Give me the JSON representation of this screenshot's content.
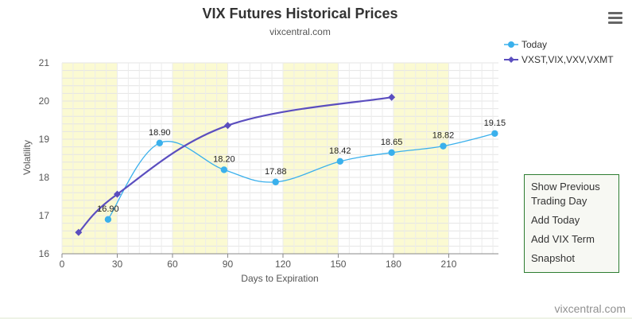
{
  "menu": {
    "icon": "hamburger-menu-icon"
  },
  "controls": {
    "show_previous": "Show Previous Trading Day",
    "add_today": "Add Today",
    "add_vix_term": "Add VIX Term",
    "snapshot": "Snapshot"
  },
  "credit": "vixcentral.com",
  "chart_data": {
    "type": "line",
    "title": "VIX Futures Historical Prices",
    "subtitle": "vixcentral.com",
    "xlabel": "Days to Expiration",
    "ylabel": "Volatility",
    "xlim": [
      0,
      237
    ],
    "ylim": [
      16,
      21
    ],
    "x_ticks": [
      0,
      30,
      60,
      90,
      120,
      150,
      180,
      210
    ],
    "y_ticks": [
      16,
      17,
      18,
      19,
      20,
      21
    ],
    "shaded_bands": [
      [
        0,
        30
      ],
      [
        60,
        90
      ],
      [
        120,
        150
      ],
      [
        180,
        210
      ]
    ],
    "grid": true,
    "legend_position": "top-right",
    "series": [
      {
        "name": "Today",
        "color": "#3ab0ec",
        "marker": "circle",
        "points": [
          {
            "x": 25,
            "y": 16.9,
            "label": "16.90"
          },
          {
            "x": 53,
            "y": 18.9,
            "label": "18.90"
          },
          {
            "x": 88,
            "y": 18.2,
            "label": "18.20"
          },
          {
            "x": 116,
            "y": 17.88,
            "label": "17.88"
          },
          {
            "x": 151,
            "y": 18.42,
            "label": "18.42"
          },
          {
            "x": 179,
            "y": 18.65,
            "label": "18.65"
          },
          {
            "x": 207,
            "y": 18.82,
            "label": "18.82"
          },
          {
            "x": 235,
            "y": 19.15,
            "label": "19.15"
          }
        ]
      },
      {
        "name": "VXST,VIX,VXV,VXMT",
        "color": "#5b4ebf",
        "marker": "diamond",
        "points": [
          {
            "x": 9,
            "y": 16.56
          },
          {
            "x": 30,
            "y": 17.56
          },
          {
            "x": 90,
            "y": 19.36
          },
          {
            "x": 179,
            "y": 20.1
          }
        ]
      }
    ]
  }
}
